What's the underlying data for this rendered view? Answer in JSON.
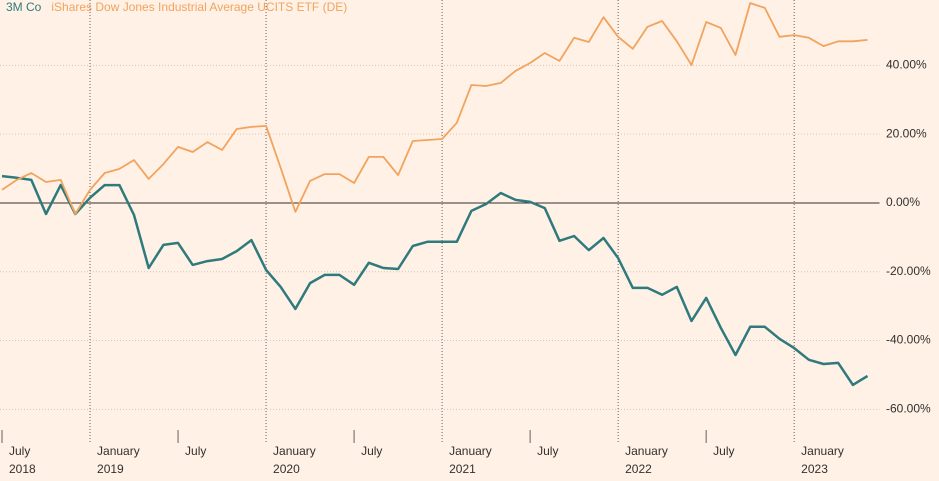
{
  "chart_data": {
    "type": "line",
    "x": [
      "2018-07",
      "2018-08",
      "2018-09",
      "2018-10",
      "2018-11",
      "2018-12",
      "2019-01",
      "2019-02",
      "2019-03",
      "2019-04",
      "2019-05",
      "2019-06",
      "2019-07",
      "2019-08",
      "2019-09",
      "2019-10",
      "2019-11",
      "2019-12",
      "2020-01",
      "2020-02",
      "2020-03",
      "2020-04",
      "2020-05",
      "2020-06",
      "2020-07",
      "2020-08",
      "2020-09",
      "2020-10",
      "2020-11",
      "2020-12",
      "2021-01",
      "2021-02",
      "2021-03",
      "2021-04",
      "2021-05",
      "2021-06",
      "2021-07",
      "2021-08",
      "2021-09",
      "2021-10",
      "2021-11",
      "2021-12",
      "2022-01",
      "2022-02",
      "2022-03",
      "2022-04",
      "2022-05",
      "2022-06",
      "2022-07",
      "2022-08",
      "2022-09",
      "2022-10",
      "2022-11",
      "2022-12",
      "2023-01",
      "2023-02",
      "2023-03",
      "2023-04",
      "2023-05",
      "2023-06"
    ],
    "series": [
      {
        "name": "3M Co",
        "color": "#2f7a7c",
        "values": [
          7.8,
          7.3,
          6.7,
          -3.2,
          5.2,
          -3.2,
          1.5,
          5.2,
          5.2,
          -3.5,
          -18.9,
          -12.2,
          -11.6,
          -18,
          -16.9,
          -16.3,
          -14,
          -10.8,
          -19.5,
          -24.4,
          -30.8,
          -23.3,
          -20.9,
          -20.9,
          -23.8,
          -17.4,
          -18.9,
          -19.2,
          -12.5,
          -11.3,
          -11.3,
          -11.3,
          -2.3,
          -0.3,
          2.9,
          0.9,
          0.3,
          -1.5,
          -11,
          -9.6,
          -13.7,
          -10.2,
          -16,
          -24.7,
          -24.7,
          -26.7,
          -24.4,
          -34.3,
          -27.6,
          -36.3,
          -44.2,
          -36,
          -36,
          -39.5,
          -42.2,
          -45.6,
          -46.8,
          -46.5,
          -52.9,
          -50.3
        ]
      },
      {
        "name": "iShares Dow Jones Industrial Average UCITS ETF (DE)",
        "color": "#f2a35e",
        "values": [
          3.8,
          6.7,
          8.7,
          6.1,
          6.7,
          -3.2,
          3.8,
          8.7,
          9.9,
          12.5,
          7,
          11.3,
          16.3,
          14.8,
          17.7,
          15.4,
          21.5,
          22.1,
          22.4,
          10.2,
          -2.6,
          6.4,
          8.4,
          8.4,
          5.8,
          13.4,
          13.4,
          8.1,
          18,
          18.3,
          18.6,
          23.3,
          34.3,
          34,
          34.9,
          38.4,
          40.7,
          43.6,
          41.3,
          48,
          46.8,
          54,
          48.3,
          44.8,
          51.2,
          52.9,
          47,
          40.1,
          52.6,
          50.9,
          43,
          58.1,
          56.7,
          48.3,
          48.8,
          48,
          45.6,
          47,
          47,
          47.4
        ]
      }
    ],
    "ylim": [
      -66,
      59
    ],
    "yticks": [
      {
        "value": 40,
        "label": "40.00%"
      },
      {
        "value": 20,
        "label": "20.00%"
      },
      {
        "value": 0,
        "label": "0.00%"
      },
      {
        "value": -20,
        "label": "-20.00%"
      },
      {
        "value": -40,
        "label": "-40.00%"
      },
      {
        "value": -60,
        "label": "-60.00%"
      }
    ],
    "xticks": [
      {
        "value": "2018-07",
        "label": "July"
      },
      {
        "value": "2019-01",
        "label": "January"
      },
      {
        "value": "2019-07",
        "label": "July"
      },
      {
        "value": "2020-01",
        "label": "January"
      },
      {
        "value": "2020-07",
        "label": "July"
      },
      {
        "value": "2021-01",
        "label": "January"
      },
      {
        "value": "2021-07",
        "label": "July"
      },
      {
        "value": "2022-01",
        "label": "January"
      },
      {
        "value": "2022-07",
        "label": "July"
      },
      {
        "value": "2023-01",
        "label": "January"
      }
    ],
    "year_labels": [
      {
        "value": "2018-07",
        "label": "2018"
      },
      {
        "value": "2019-01",
        "label": "2019"
      },
      {
        "value": "2020-01",
        "label": "2020"
      },
      {
        "value": "2021-01",
        "label": "2021"
      },
      {
        "value": "2022-01",
        "label": "2022"
      },
      {
        "value": "2023-01",
        "label": "2023"
      }
    ],
    "grid": true
  }
}
